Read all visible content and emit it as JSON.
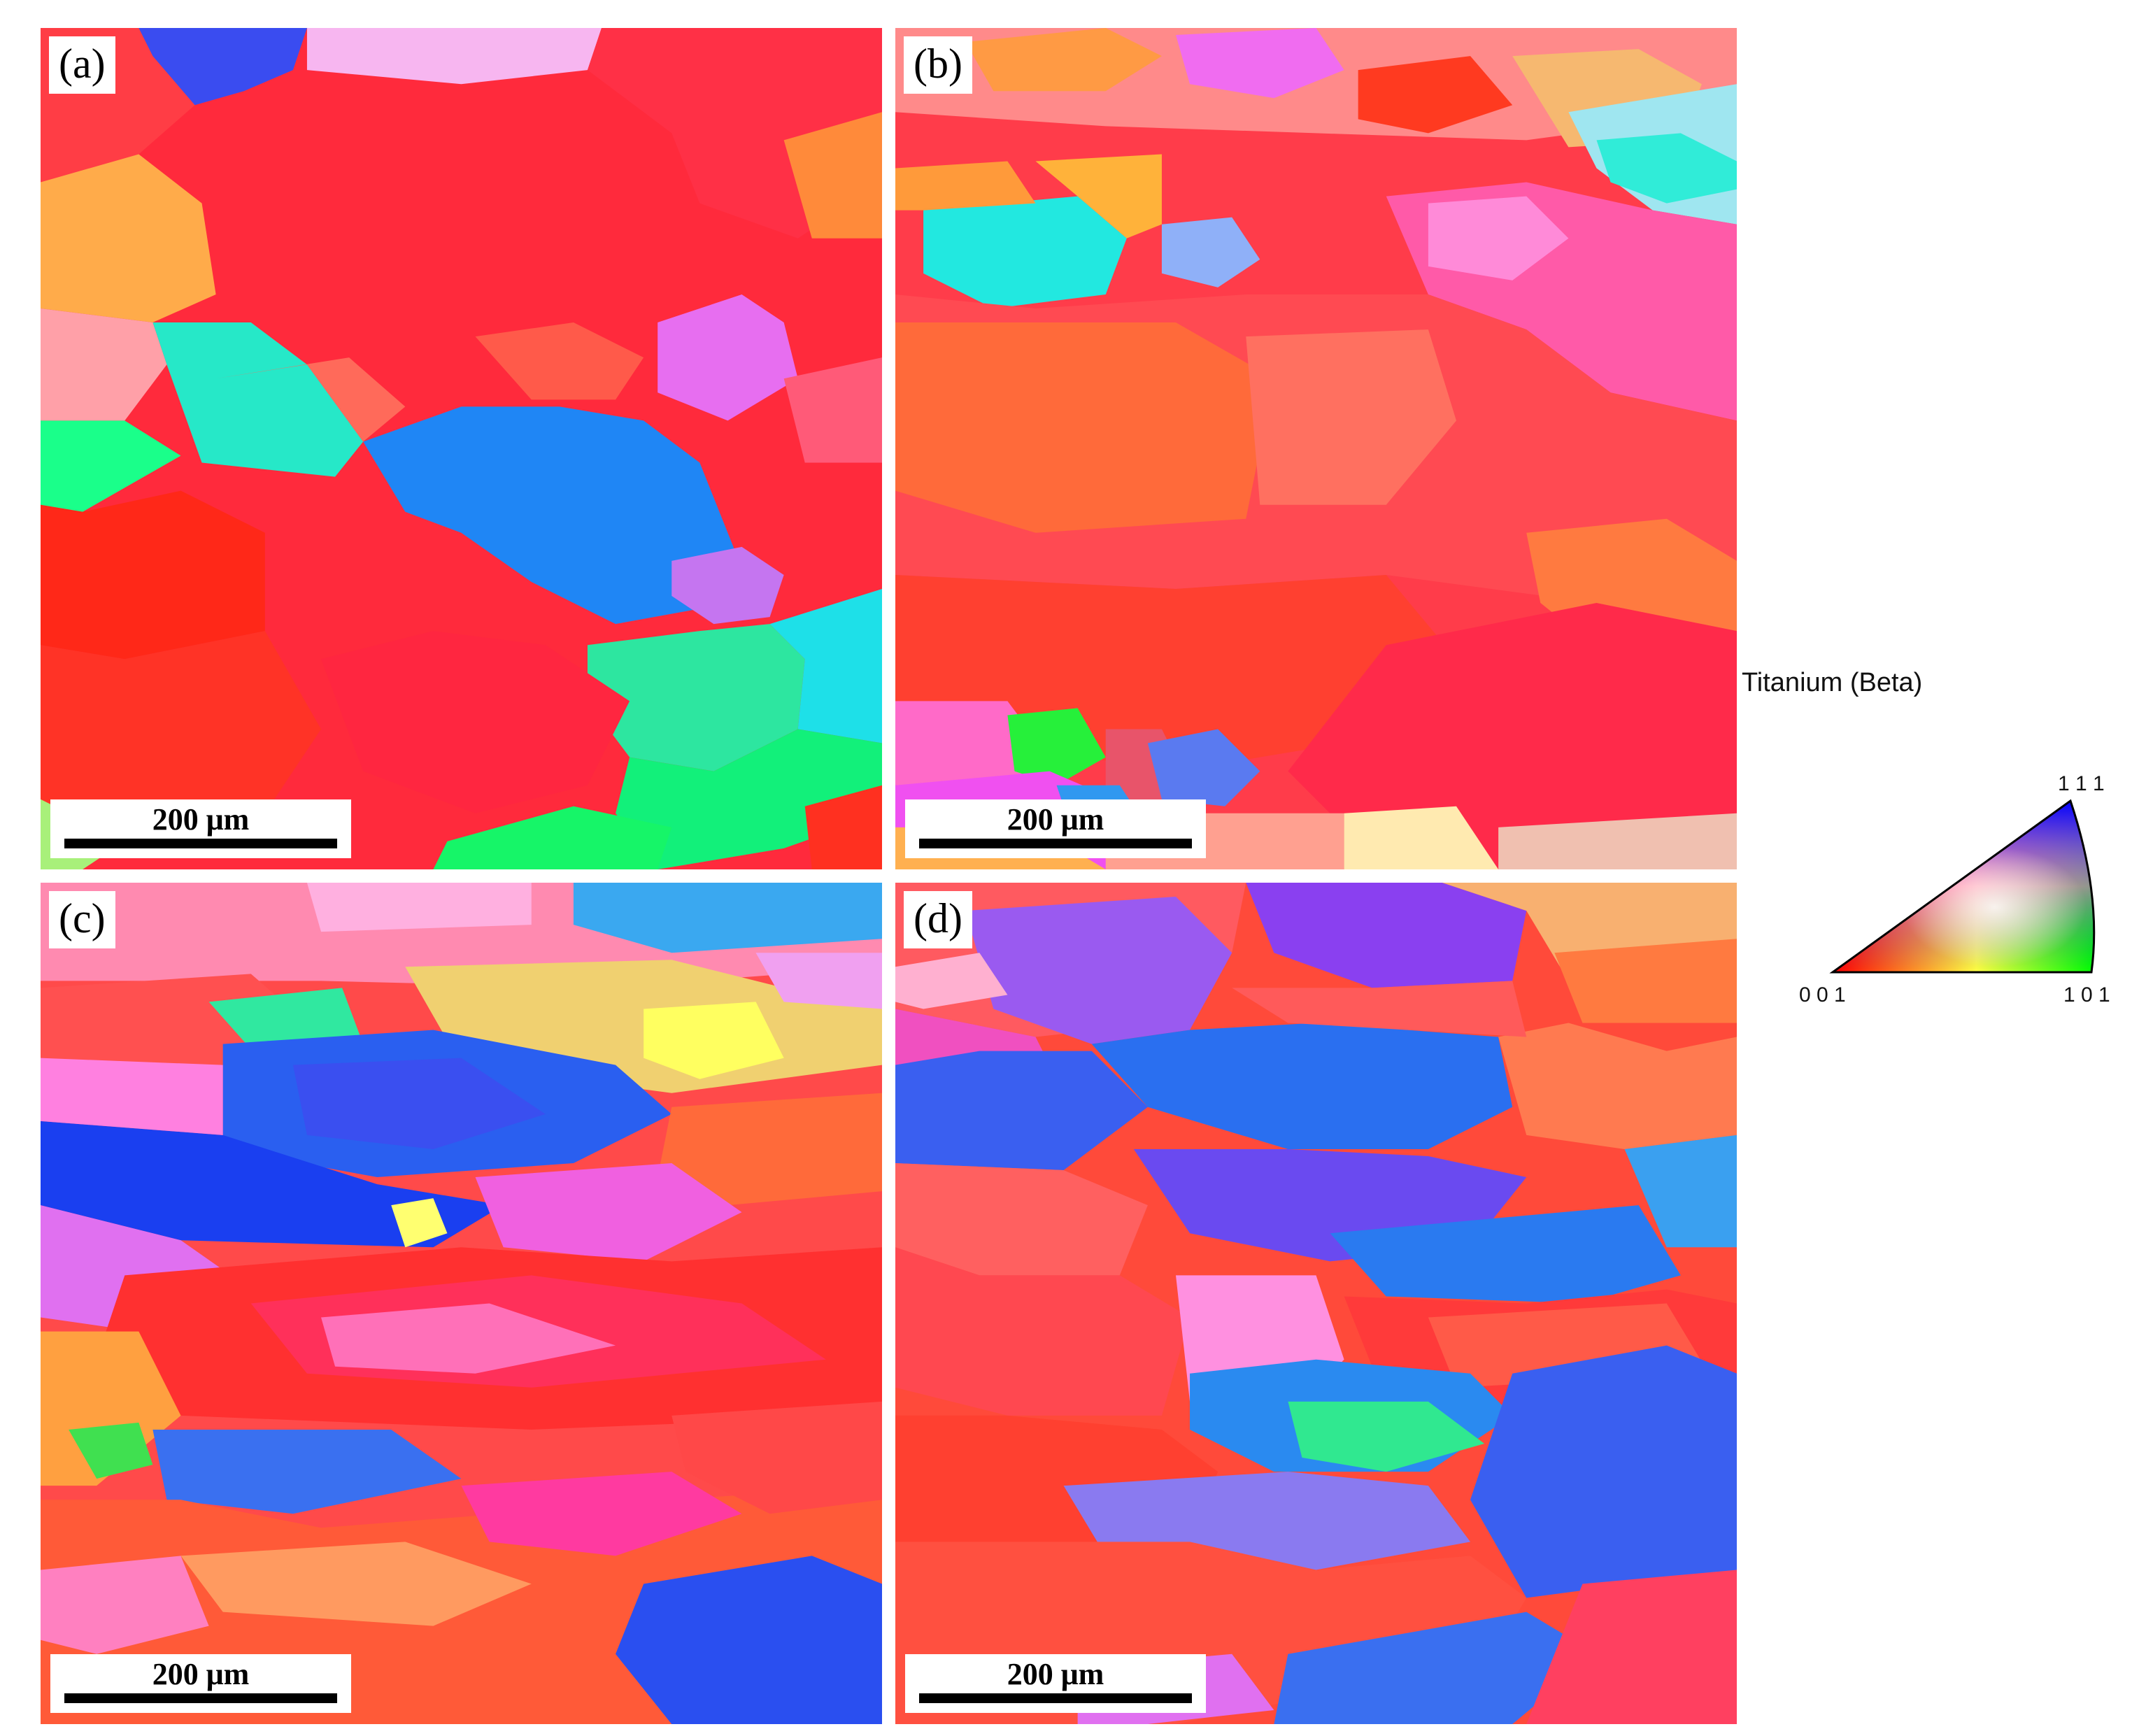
{
  "panels": [
    {
      "label": "(a)",
      "scale_bar": "200 μm"
    },
    {
      "label": "(b)",
      "scale_bar": "200 μm"
    },
    {
      "label": "(c)",
      "scale_bar": "200 μm"
    },
    {
      "label": "(d)",
      "scale_bar": "200 μm"
    }
  ],
  "legend": {
    "title": "Titanium (Beta)",
    "corners": {
      "top": "1 1 1",
      "left": "0 0 1",
      "right": "1 0 1"
    },
    "colors": {
      "001": "#ff0000",
      "101": "#00ff00",
      "111": "#0000ff"
    }
  }
}
